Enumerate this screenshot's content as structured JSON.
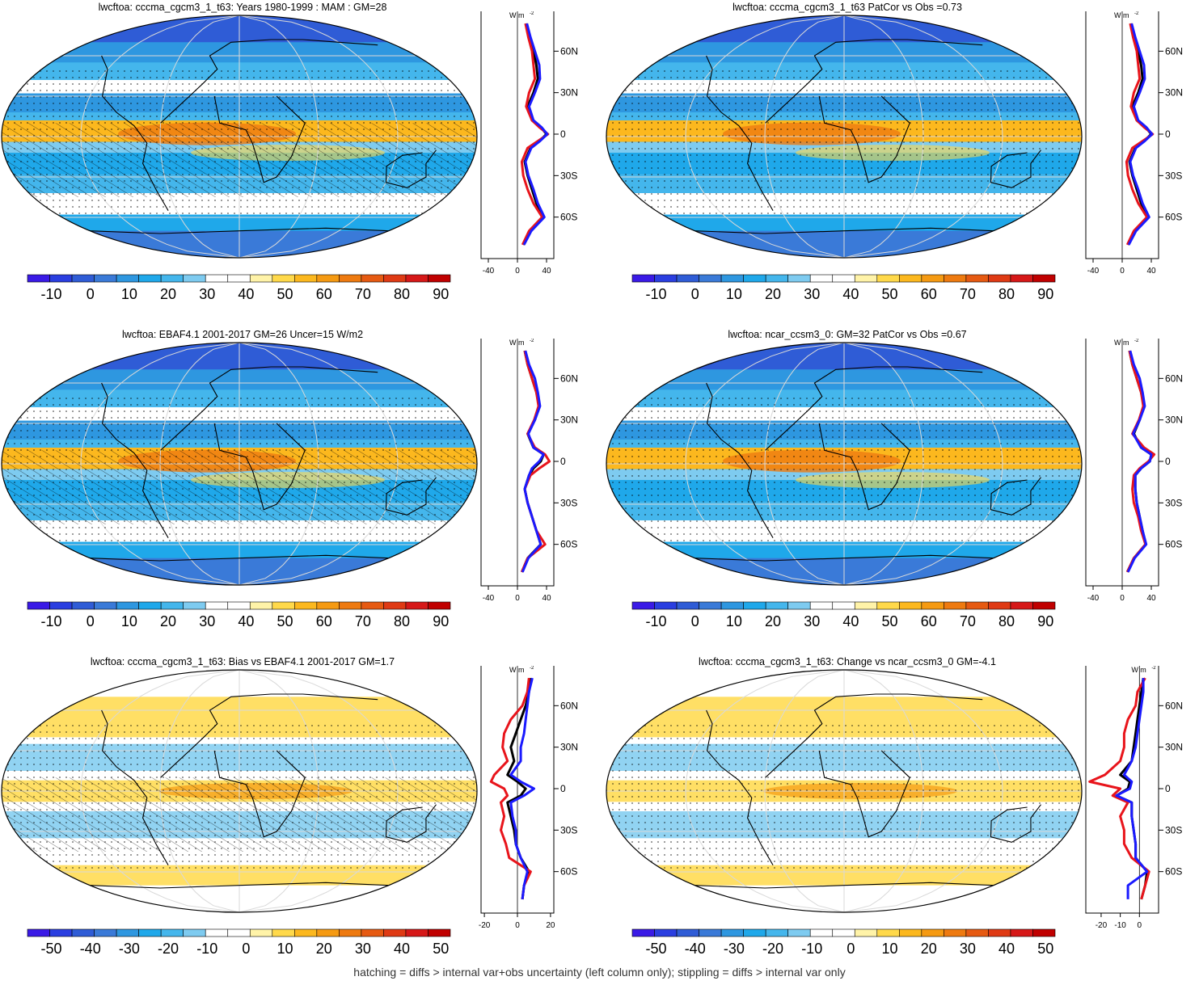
{
  "footer": "hatching = diffs > internal var+obs uncertainty (left column only); stippling = diffs > internal var only",
  "units_label": "W m",
  "units_exp": "-2",
  "lat_ticks": [
    "60N",
    "30N",
    "0",
    "30S",
    "60S"
  ],
  "colors": {
    "model": "#000000",
    "obs": "#e8141b",
    "ref": "#1a1aff",
    "palette_abs": [
      "#3a1ae6",
      "#2a3ee0",
      "#2f5cd6",
      "#3a7ad8",
      "#2e97e0",
      "#1fa8ea",
      "#44b6ec",
      "#7ecbf0",
      "#ffffff",
      "#ffffff",
      "#fff3a8",
      "#ffd94a",
      "#fcb81e",
      "#f59a12",
      "#ee7a10",
      "#e65a12",
      "#df3a14",
      "#d61818",
      "#c00000"
    ],
    "palette_diff": [
      "#3a1ae6",
      "#2a3ee0",
      "#2f5cd6",
      "#3a7ad8",
      "#2e97e0",
      "#1fa8ea",
      "#44b6ec",
      "#7ecbf0",
      "#ffffff",
      "#ffffff",
      "#fff3a8",
      "#ffd94a",
      "#fcb81e",
      "#f59a12",
      "#ee7a10",
      "#e65a12",
      "#df3a14",
      "#d61818",
      "#c00000"
    ]
  },
  "panels": [
    {
      "title": "lwcftoa: cccma_cgcm3_1_t63: Years 1980-1999 : MAM : GM=28"
    },
    {
      "title": "lwcftoa: cccma_cgcm3_1_t63 PatCor vs Obs =0.73"
    },
    {
      "title": "lwcftoa: EBAF4.1 2001-2017 GM=26 Uncer=15 W/m2"
    },
    {
      "title": "lwcftoa: ncar_ccsm3_0: GM=32 PatCor vs Obs =0.67"
    },
    {
      "title": "lwcftoa: cccma_cgcm3_1_t63: Bias vs EBAF4.1 2001-2017 GM=1.7"
    },
    {
      "title": "lwcftoa: cccma_cgcm3_1_t63: Change vs ncar_ccsm3_0 GM=-4.1"
    }
  ],
  "chart_data": [
    {
      "type": "heatmap",
      "title": "lwcftoa: cccma_cgcm3_1_t63: Years 1980-1999 : MAM : GM=28",
      "colorbar_labels": [
        "-10",
        "0",
        "10",
        "20",
        "30",
        "40",
        "50",
        "60",
        "70",
        "80",
        "90"
      ],
      "zonal_profile": {
        "xlim": [
          -50,
          50
        ],
        "x_tick_labels": [
          "-40",
          "0",
          "40"
        ],
        "lat": [
          80,
          70,
          60,
          50,
          40,
          30,
          20,
          10,
          5,
          0,
          -5,
          -10,
          -20,
          -30,
          -40,
          -50,
          -60,
          -70,
          -80
        ],
        "series": [
          {
            "color": "model",
            "values": [
              12,
              16,
              22,
              26,
              28,
              22,
              14,
              20,
              32,
              40,
              30,
              18,
              10,
              14,
              20,
              26,
              36,
              18,
              8
            ]
          },
          {
            "color": "obs",
            "values": [
              11,
              15,
              20,
              22,
              24,
              16,
              12,
              20,
              30,
              42,
              28,
              14,
              6,
              8,
              14,
              22,
              34,
              16,
              7
            ]
          },
          {
            "color": "ref",
            "values": [
              13,
              18,
              24,
              30,
              31,
              24,
              16,
              22,
              33,
              41,
              31,
              19,
              11,
              15,
              22,
              28,
              37,
              19,
              9
            ]
          }
        ]
      }
    },
    {
      "type": "heatmap",
      "title": "lwcftoa: cccma_cgcm3_1_t63 PatCor vs Obs =0.73",
      "colorbar_labels": [
        "-10",
        "0",
        "10",
        "20",
        "30",
        "40",
        "50",
        "60",
        "70",
        "80",
        "90"
      ],
      "zonal_profile": {
        "xlim": [
          -50,
          50
        ],
        "x_tick_labels": [
          "-40",
          "0",
          "40"
        ],
        "lat": [
          80,
          70,
          60,
          50,
          40,
          30,
          20,
          10,
          5,
          0,
          -5,
          -10,
          -20,
          -30,
          -40,
          -50,
          -60,
          -70,
          -80
        ],
        "series": [
          {
            "color": "model",
            "values": [
              12,
              16,
              22,
              26,
              28,
              22,
              14,
              20,
              32,
              40,
              30,
              18,
              10,
              14,
              20,
              26,
              36,
              18,
              8
            ]
          },
          {
            "color": "obs",
            "values": [
              11,
              15,
              20,
              22,
              24,
              16,
              12,
              20,
              30,
              42,
              28,
              14,
              6,
              8,
              14,
              22,
              34,
              16,
              7
            ]
          },
          {
            "color": "ref",
            "values": [
              13,
              18,
              24,
              30,
              31,
              24,
              16,
              22,
              33,
              41,
              31,
              19,
              11,
              15,
              22,
              28,
              37,
              19,
              9
            ]
          }
        ]
      }
    },
    {
      "type": "heatmap",
      "title": "lwcftoa: EBAF4.1 2001-2017 GM=26 Uncer=15 W/m2",
      "colorbar_labels": [
        "-10",
        "0",
        "10",
        "20",
        "30",
        "40",
        "50",
        "60",
        "70",
        "80",
        "90"
      ],
      "zonal_profile": {
        "xlim": [
          -50,
          50
        ],
        "x_tick_labels": [
          "-40",
          "0",
          "40"
        ],
        "lat": [
          80,
          70,
          60,
          50,
          40,
          30,
          20,
          10,
          5,
          0,
          -5,
          -10,
          -20,
          -30,
          -40,
          -50,
          -60,
          -70,
          -80
        ],
        "series": [
          {
            "color": "model",
            "values": [
              10,
              14,
              20,
              26,
              30,
              24,
              14,
              22,
              36,
              32,
              22,
              16,
              10,
              14,
              20,
              26,
              32,
              14,
              6
            ]
          },
          {
            "color": "obs",
            "values": [
              10,
              14,
              20,
              26,
              29,
              23,
              14,
              24,
              38,
              44,
              30,
              18,
              10,
              14,
              20,
              26,
              38,
              14,
              6
            ]
          },
          {
            "color": "ref",
            "values": [
              11,
              16,
              24,
              28,
              31,
              24,
              15,
              22,
              36,
              30,
              20,
              16,
              10,
              14,
              20,
              26,
              32,
              15,
              7
            ]
          }
        ]
      }
    },
    {
      "type": "heatmap",
      "title": "lwcftoa: ncar_ccsm3_0: GM=32 PatCor vs Obs =0.67",
      "colorbar_labels": [
        "-10",
        "0",
        "10",
        "20",
        "30",
        "40",
        "50",
        "60",
        "70",
        "80",
        "90"
      ],
      "zonal_profile": {
        "xlim": [
          -50,
          50
        ],
        "x_tick_labels": [
          "-40",
          "0",
          "40"
        ],
        "lat": [
          80,
          70,
          60,
          50,
          40,
          30,
          20,
          10,
          5,
          0,
          -5,
          -10,
          -20,
          -30,
          -40,
          -50,
          -60,
          -70,
          -80
        ],
        "series": [
          {
            "color": "model",
            "values": [
              10,
              14,
              20,
              26,
              30,
              24,
              16,
              26,
              40,
              38,
              26,
              18,
              18,
              20,
              24,
              28,
              32,
              16,
              7
            ]
          },
          {
            "color": "obs",
            "values": [
              10,
              14,
              20,
              26,
              29,
              23,
              14,
              30,
              44,
              36,
              24,
              16,
              14,
              16,
              22,
              26,
              32,
              16,
              7
            ]
          },
          {
            "color": "ref",
            "values": [
              11,
              16,
              24,
              28,
              31,
              24,
              15,
              26,
              40,
              38,
              26,
              18,
              18,
              20,
              24,
              28,
              33,
              17,
              8
            ]
          }
        ]
      }
    },
    {
      "type": "heatmap",
      "title": "lwcftoa: cccma_cgcm3_1_t63: Bias vs EBAF4.1 2001-2017 GM=1.7",
      "colorbar_labels": [
        "-50",
        "-40",
        "-30",
        "-20",
        "-10",
        "0",
        "10",
        "20",
        "30",
        "40",
        "50"
      ],
      "zonal_profile": {
        "xlim": [
          -22,
          22
        ],
        "x_tick_labels": [
          "-20",
          "0",
          "20"
        ],
        "lat": [
          80,
          70,
          60,
          50,
          40,
          30,
          20,
          10,
          5,
          0,
          -5,
          -10,
          -20,
          -30,
          -40,
          -50,
          -60,
          -70,
          -80
        ],
        "series": [
          {
            "color": "model",
            "values": [
              8,
              7,
              5,
              2,
              -1,
              -4,
              -2,
              -6,
              0,
              5,
              2,
              -6,
              -4,
              -2,
              -1,
              2,
              7,
              4,
              3
            ]
          },
          {
            "color": "obs",
            "values": [
              7,
              6,
              3,
              -4,
              -8,
              -9,
              -6,
              -14,
              -16,
              -8,
              -6,
              -10,
              -8,
              -10,
              -7,
              -5,
              8,
              4,
              3
            ]
          },
          {
            "color": "ref",
            "values": [
              9,
              7,
              6,
              5,
              4,
              2,
              2,
              -4,
              2,
              10,
              4,
              -4,
              -3,
              -1,
              -1,
              2,
              6,
              4,
              3
            ]
          }
        ]
      }
    },
    {
      "type": "heatmap",
      "title": "lwcftoa: cccma_cgcm3_1_t63: Change vs ncar_ccsm3_0 GM=-4.1",
      "colorbar_labels": [
        "-50",
        "-40",
        "-30",
        "-20",
        "-10",
        "0",
        "10",
        "20",
        "30",
        "40",
        "50"
      ],
      "zonal_profile": {
        "xlim": [
          -28,
          10
        ],
        "x_tick_labels": [
          "-20",
          "-10",
          "0"
        ],
        "lat": [
          80,
          70,
          60,
          50,
          40,
          30,
          20,
          10,
          5,
          0,
          -5,
          -10,
          -20,
          -30,
          -40,
          -50,
          -60,
          -70,
          -80
        ],
        "series": [
          {
            "color": "model",
            "values": [
              2,
              1,
              0,
              -1,
              -2,
              -3,
              -4,
              -10,
              -5,
              -6,
              -12,
              -4,
              -4,
              -3,
              -2,
              -2,
              4,
              3,
              1
            ]
          },
          {
            "color": "obs",
            "values": [
              3,
              -1,
              -2,
              -6,
              -8,
              -8,
              -10,
              -18,
              -26,
              -10,
              -14,
              -6,
              -10,
              -8,
              -8,
              -4,
              5,
              3,
              1
            ]
          },
          {
            "color": "ref",
            "values": [
              2,
              2,
              1,
              0,
              -1,
              -2,
              -4,
              -8,
              -4,
              -5,
              -12,
              -4,
              -4,
              -3,
              -2,
              -2,
              4,
              -6,
              -6
            ]
          }
        ]
      }
    }
  ]
}
